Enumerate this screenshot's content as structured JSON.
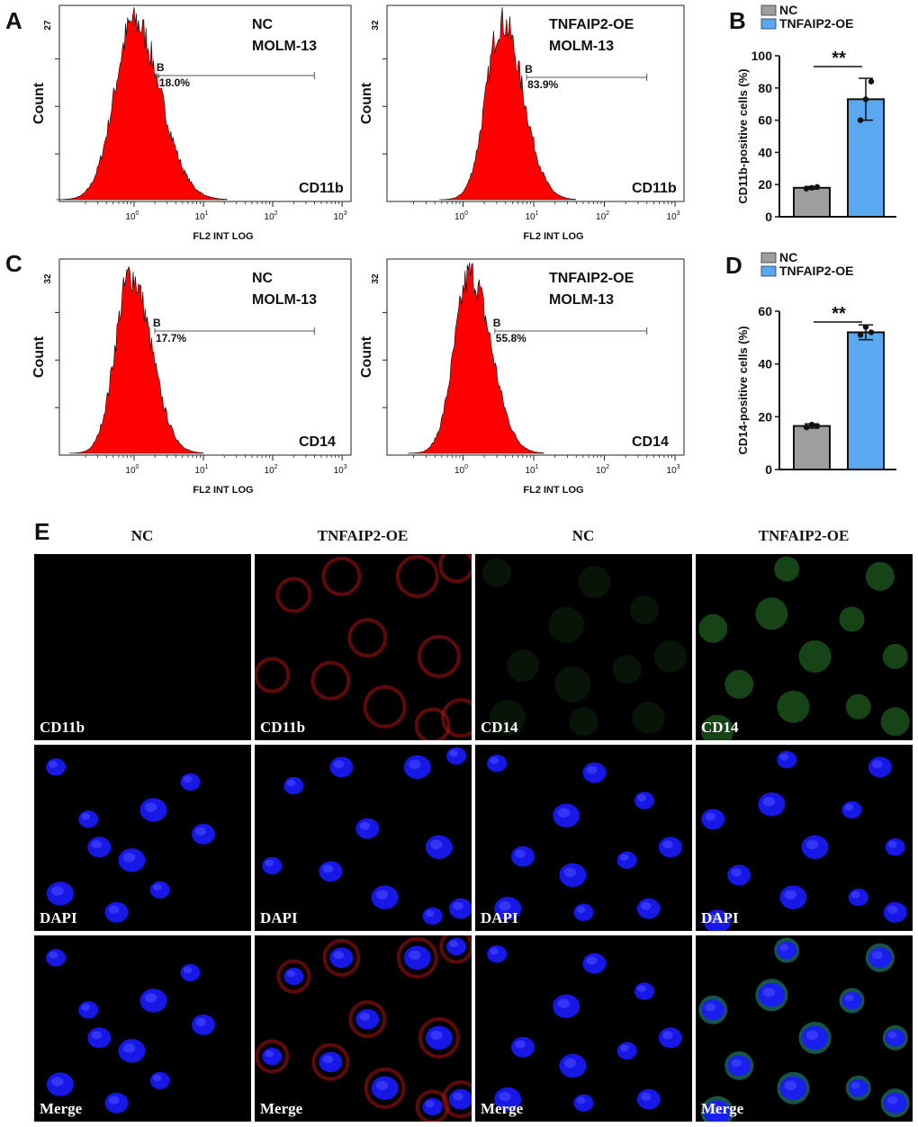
{
  "panels": {
    "A": "A",
    "B": "B",
    "C": "C",
    "D": "D",
    "E": "E"
  },
  "flow": {
    "xlabel": "FL2 INT LOG",
    "ylabel": "Count",
    "x_ticks": [
      "10^0",
      "10^1",
      "10^2",
      "10^3"
    ],
    "plots": [
      {
        "id": "A-nc",
        "group": "NC",
        "cell": "MOLM-13",
        "marker": "CD11b",
        "gate": "B",
        "percent": "18.0%",
        "ymax": "27",
        "peak_log": 0.0,
        "width_log": 0.28
      },
      {
        "id": "A-oe",
        "group": "TNFAIP2-OE",
        "cell": "MOLM-13",
        "marker": "CD11b",
        "gate": "B",
        "percent": "83.9%",
        "ymax": "32",
        "peak_log": 0.55,
        "width_log": 0.22
      },
      {
        "id": "C-nc",
        "group": "NC",
        "cell": "MOLM-13",
        "marker": "CD14",
        "gate": "B",
        "percent": "17.7%",
        "ymax": "32",
        "peak_log": -0.05,
        "width_log": 0.22
      },
      {
        "id": "C-oe",
        "group": "TNFAIP2-OE",
        "cell": "MOLM-13",
        "marker": "CD14",
        "gate": "B",
        "percent": "55.8%",
        "ymax": "32",
        "peak_log": 0.1,
        "width_log": 0.22
      }
    ]
  },
  "chart_data": [
    {
      "type": "bar",
      "panel": "B",
      "categories": [
        "NC",
        "TNFAIP2-OE"
      ],
      "values": [
        18,
        73
      ],
      "errors": [
        0.8,
        13
      ],
      "points": [
        [
          17.5,
          18,
          18.5
        ],
        [
          60,
          73,
          84
        ]
      ],
      "ylabel": "CD11b-positive cells (%)",
      "ylim": [
        0,
        100
      ],
      "yticks": [
        0,
        20,
        40,
        60,
        80,
        100
      ],
      "significance": "**",
      "legend": [
        "NC",
        "TNFAIP2-OE"
      ],
      "colors": [
        "#9e9e9e",
        "#5aa9f0"
      ]
    },
    {
      "type": "bar",
      "panel": "D",
      "categories": [
        "NC",
        "TNFAIP2-OE"
      ],
      "values": [
        16.5,
        52
      ],
      "errors": [
        0.8,
        2.8
      ],
      "points": [
        [
          16,
          17,
          16.5
        ],
        [
          51,
          54,
          52
        ]
      ],
      "ylabel": "CD14-positive cells (%)",
      "ylim": [
        0,
        60
      ],
      "yticks": [
        0,
        20,
        40,
        60
      ],
      "significance": "**",
      "legend": [
        "NC",
        "TNFAIP2-OE"
      ],
      "colors": [
        "#9e9e9e",
        "#5aa9f0"
      ]
    }
  ],
  "microscopy": {
    "columns": [
      "NC",
      "TNFAIP2-OE",
      "NC",
      "TNFAIP2-OE"
    ],
    "rows": [
      {
        "labels": [
          "CD11b",
          "CD11b",
          "CD14",
          "CD14"
        ]
      },
      {
        "labels": [
          "DAPI",
          "DAPI",
          "DAPI",
          "DAPI"
        ]
      },
      {
        "labels": [
          "Merge",
          "Merge",
          "Merge",
          "Merge"
        ]
      }
    ]
  }
}
